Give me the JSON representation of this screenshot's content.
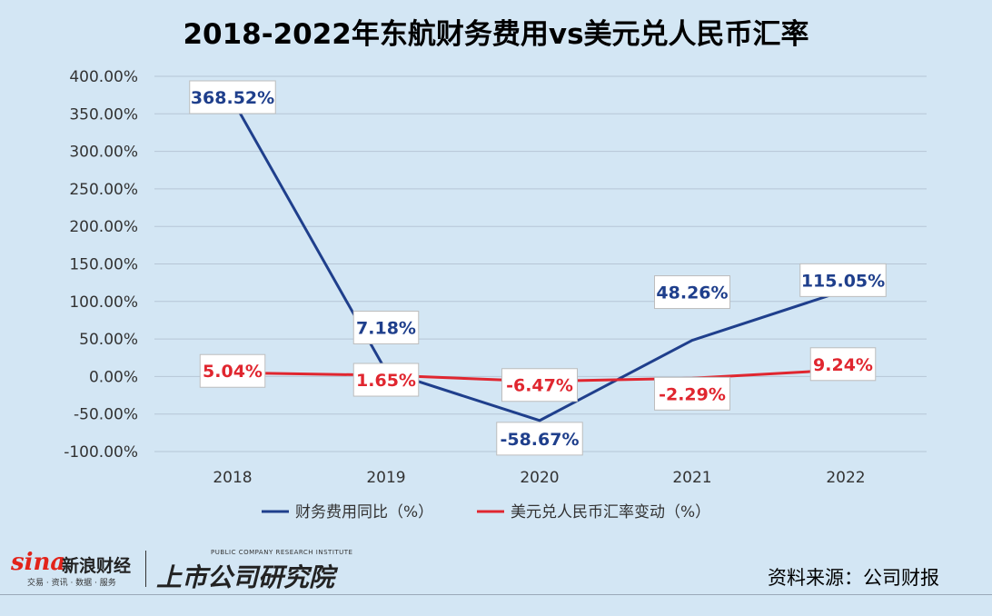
{
  "chart_data": {
    "type": "line",
    "title": "2018-2022年东航财务费用vs美元兑人民币汇率",
    "categories": [
      "2018",
      "2019",
      "2020",
      "2021",
      "2022"
    ],
    "ylim": [
      -100,
      400
    ],
    "yticks": [
      {
        "value": 400,
        "label": "400.00%"
      },
      {
        "value": 350,
        "label": "350.00%"
      },
      {
        "value": 300,
        "label": "300.00%"
      },
      {
        "value": 250,
        "label": "250.00%"
      },
      {
        "value": 200,
        "label": "200.00%"
      },
      {
        "value": 150,
        "label": "150.00%"
      },
      {
        "value": 100,
        "label": "100.00%"
      },
      {
        "value": 50,
        "label": "50.00%"
      },
      {
        "value": 0,
        "label": "0.00%"
      },
      {
        "value": -50,
        "label": "-50.00%"
      },
      {
        "value": -100,
        "label": "-100.00%"
      }
    ],
    "grid": true,
    "legend_position": "bottom",
    "series": [
      {
        "name": "财务费用同比（%）",
        "color": "#1f3f8c",
        "values": [
          368.52,
          7.18,
          -58.67,
          48.26,
          115.05
        ],
        "labels": [
          "368.52%",
          "7.18%",
          "-58.67%",
          "48.26%",
          "115.05%"
        ]
      },
      {
        "name": "美元兑人民币汇率变动（%）",
        "color": "#e0262f",
        "values": [
          5.04,
          1.65,
          -6.47,
          -2.29,
          9.24
        ],
        "labels": [
          "5.04%",
          "1.65%",
          "-6.47%",
          "-2.29%",
          "9.24%"
        ]
      }
    ]
  },
  "branding": {
    "sina_word": "sina",
    "sina_cn": "新浪财经",
    "sina_sub": "交易 · 资讯 · 数据 · 服务",
    "ssri_tag": "PUBLIC COMPANY RESEARCH INSTITUTE",
    "ssri_name": "上市公司研究院"
  },
  "source": "资料来源：公司财报"
}
